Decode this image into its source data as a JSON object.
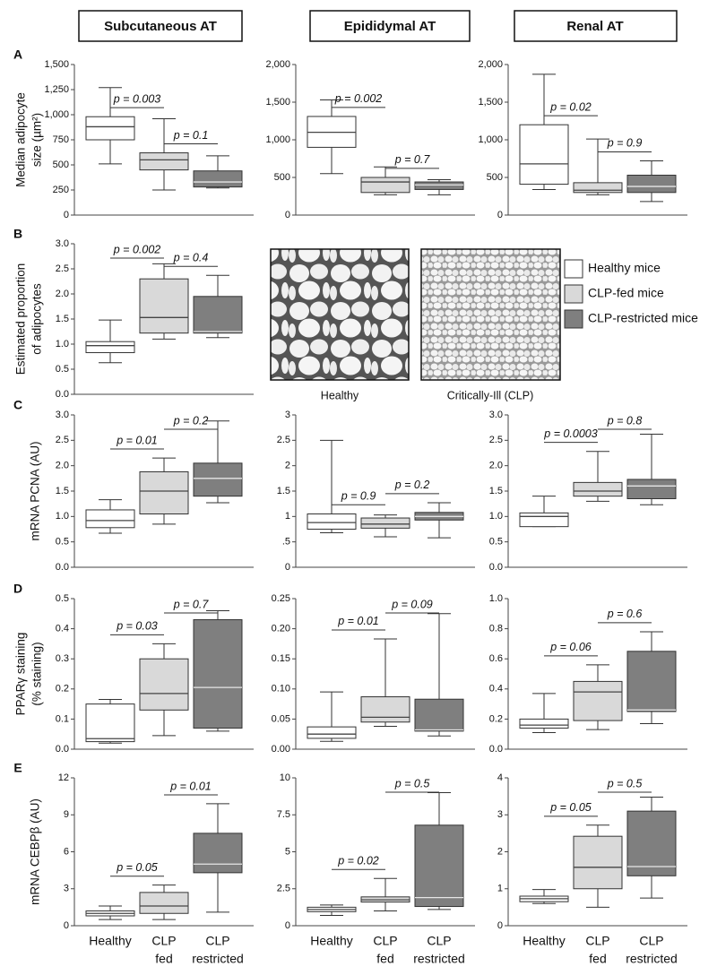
{
  "columns": [
    "Subcutaneous AT",
    "Epididymal AT",
    "Renal AT"
  ],
  "legend": [
    {
      "name": "Healthy mice",
      "color": "#ffffff"
    },
    {
      "name": "CLP-fed mice",
      "color": "#d9d9d9"
    },
    {
      "name": "CLP-restricted mice",
      "color": "#7f7f7f"
    }
  ],
  "image_captions": [
    "Healthy",
    "Critically-Ill (CLP)"
  ],
  "chart_data": [
    {
      "type": "box",
      "panel": "A",
      "ylabel": [
        "Median adipocyte",
        "size (µm²)"
      ],
      "ylim": [
        0,
        1500
      ],
      "yticks": [
        0,
        250,
        500,
        750,
        {
          "value": 1000,
          "label": "1,000"
        },
        {
          "value": 1250,
          "label": "1,250"
        },
        {
          "value": 1500,
          "label": "1,500"
        }
      ],
      "boxes": [
        {
          "min": 510,
          "q1": 750,
          "median": 880,
          "q3": 980,
          "max": 1270
        },
        {
          "min": 250,
          "q1": 450,
          "median": 550,
          "q3": 620,
          "max": 960
        },
        {
          "min": 270,
          "q1": 280,
          "median": 330,
          "q3": 440,
          "max": 590
        }
      ],
      "annotations": [
        "p = 0.003",
        "p = 0.1"
      ]
    },
    {
      "type": "box",
      "ylim": [
        0,
        2000
      ],
      "yticks": [
        0,
        500,
        {
          "value": 1000,
          "label": "1,000"
        },
        {
          "value": 1500,
          "label": "1,500"
        },
        {
          "value": 2000,
          "label": "2,000"
        }
      ],
      "boxes": [
        {
          "min": 550,
          "q1": 900,
          "median": 1100,
          "q3": 1310,
          "max": 1530
        },
        {
          "min": 270,
          "q1": 300,
          "median": 440,
          "q3": 500,
          "max": 640
        },
        {
          "min": 270,
          "q1": 340,
          "median": 400,
          "q3": 440,
          "max": 470
        }
      ],
      "annotations": [
        "p = 0.002",
        "p = 0.7"
      ]
    },
    {
      "type": "box",
      "ylim": [
        0,
        2000
      ],
      "yticks": [
        0,
        500,
        {
          "value": 1000,
          "label": "1,000"
        },
        {
          "value": 1500,
          "label": "1,500"
        },
        {
          "value": 2000,
          "label": "2,000"
        }
      ],
      "boxes": [
        {
          "min": 340,
          "q1": 410,
          "median": 680,
          "q3": 1200,
          "max": 1870
        },
        {
          "min": 270,
          "q1": 300,
          "median": 330,
          "q3": 430,
          "max": 1010
        },
        {
          "min": 180,
          "q1": 300,
          "median": 380,
          "q3": 530,
          "max": 720
        }
      ],
      "annotations": [
        "p = 0.02",
        "p = 0.9"
      ]
    },
    {
      "type": "box",
      "panel": "B",
      "ylabel": [
        "Estimated proportion",
        "of adipocytes"
      ],
      "ylim": [
        0,
        3
      ],
      "yticks": [
        {
          "value": 0,
          "label": "0.0"
        },
        0.5,
        {
          "value": 1,
          "label": "1.0"
        },
        1.5,
        {
          "value": 2,
          "label": "2.0"
        },
        2.5,
        {
          "value": 3,
          "label": "3.0"
        }
      ],
      "boxes": [
        {
          "min": 0.63,
          "q1": 0.83,
          "median": 0.97,
          "q3": 1.05,
          "max": 1.48
        },
        {
          "min": 1.1,
          "q1": 1.22,
          "median": 1.53,
          "q3": 2.3,
          "max": 2.6
        },
        {
          "min": 1.13,
          "q1": 1.22,
          "median": 1.25,
          "q3": 1.95,
          "max": 2.37
        }
      ],
      "annotations": [
        "p = 0.002",
        "p = 0.4"
      ]
    },
    {
      "type": "box",
      "panel": "C",
      "ylabel": [
        "mRNA PCNA (AU)"
      ],
      "ylim": [
        0,
        3
      ],
      "yticks": [
        {
          "value": 0,
          "label": "0.0"
        },
        0.5,
        {
          "value": 1,
          "label": "1.0"
        },
        1.5,
        {
          "value": 2,
          "label": "2.0"
        },
        2.5,
        {
          "value": 3,
          "label": "3.0"
        }
      ],
      "boxes": [
        {
          "min": 0.67,
          "q1": 0.78,
          "median": 0.92,
          "q3": 1.13,
          "max": 1.33
        },
        {
          "min": 0.85,
          "q1": 1.05,
          "median": 1.5,
          "q3": 1.88,
          "max": 2.15
        },
        {
          "min": 1.27,
          "q1": 1.4,
          "median": 1.75,
          "q3": 2.05,
          "max": 2.88
        }
      ],
      "annotations": [
        "p = 0.01",
        "p = 0.2"
      ]
    },
    {
      "type": "box",
      "ylim": [
        0,
        3
      ],
      "yticks": [
        0,
        {
          "value": 0.5,
          "label": ".5"
        },
        1,
        1.5,
        2,
        2.5,
        3
      ],
      "boxes": [
        {
          "min": 0.68,
          "q1": 0.75,
          "median": 0.88,
          "q3": 1.05,
          "max": 2.5
        },
        {
          "min": 0.6,
          "q1": 0.77,
          "median": 0.85,
          "q3": 0.97,
          "max": 1.03
        },
        {
          "min": 0.58,
          "q1": 0.93,
          "median": 1.0,
          "q3": 1.08,
          "max": 1.27
        }
      ],
      "annotations": [
        "p = 0.9",
        "p = 0.2"
      ]
    },
    {
      "type": "box",
      "ylim": [
        0,
        3
      ],
      "yticks": [
        {
          "value": 0,
          "label": "0.0"
        },
        0.5,
        {
          "value": 1,
          "label": "1.0"
        },
        1.5,
        {
          "value": 2,
          "label": "2.0"
        },
        2.5,
        {
          "value": 3,
          "label": "3.0"
        }
      ],
      "boxes": [
        {
          "min": 0.8,
          "q1": 0.8,
          "median": 1.0,
          "q3": 1.07,
          "max": 1.4
        },
        {
          "min": 1.3,
          "q1": 1.4,
          "median": 1.5,
          "q3": 1.67,
          "max": 2.28
        },
        {
          "min": 1.23,
          "q1": 1.35,
          "median": 1.6,
          "q3": 1.73,
          "max": 2.62
        }
      ],
      "annotations": [
        "p = 0.0003",
        "p = 0.8"
      ]
    },
    {
      "type": "box",
      "panel": "D",
      "ylabel": [
        "PPARγ staining",
        "(% staining)"
      ],
      "ylim": [
        0,
        0.5
      ],
      "yticks": [
        {
          "value": 0,
          "label": "0.0"
        },
        0.1,
        0.2,
        0.3,
        0.4,
        0.5
      ],
      "boxes": [
        {
          "min": 0.02,
          "q1": 0.025,
          "median": 0.035,
          "q3": 0.15,
          "max": 0.165
        },
        {
          "min": 0.045,
          "q1": 0.13,
          "median": 0.185,
          "q3": 0.3,
          "max": 0.35
        },
        {
          "min": 0.06,
          "q1": 0.07,
          "median": 0.205,
          "q3": 0.43,
          "max": 0.46
        }
      ],
      "annotations": [
        "p = 0.03",
        "p = 0.7"
      ]
    },
    {
      "type": "box",
      "ylim": [
        0,
        0.25
      ],
      "yticks": [
        {
          "value": 0,
          "label": "0.00"
        },
        0.05,
        {
          "value": 0.1,
          "label": "0.10"
        },
        0.15,
        {
          "value": 0.2,
          "label": "0.20"
        },
        0.25
      ],
      "boxes": [
        {
          "min": 0.013,
          "q1": 0.018,
          "median": 0.025,
          "q3": 0.037,
          "max": 0.095
        },
        {
          "min": 0.038,
          "q1": 0.045,
          "median": 0.053,
          "q3": 0.087,
          "max": 0.183
        },
        {
          "min": 0.022,
          "q1": 0.03,
          "median": 0.032,
          "q3": 0.083,
          "max": 0.225
        }
      ],
      "annotations": [
        "p = 0.01",
        "p = 0.09"
      ]
    },
    {
      "type": "box",
      "ylim": [
        0,
        1
      ],
      "yticks": [
        {
          "value": 0,
          "label": "0.0"
        },
        0.2,
        0.4,
        0.6,
        0.8,
        {
          "value": 1,
          "label": "1.0"
        }
      ],
      "boxes": [
        {
          "min": 0.11,
          "q1": 0.14,
          "median": 0.16,
          "q3": 0.2,
          "max": 0.37
        },
        {
          "min": 0.13,
          "q1": 0.19,
          "median": 0.38,
          "q3": 0.45,
          "max": 0.56
        },
        {
          "min": 0.17,
          "q1": 0.25,
          "median": 0.26,
          "q3": 0.65,
          "max": 0.78
        }
      ],
      "annotations": [
        "p = 0.06",
        "p = 0.6"
      ]
    },
    {
      "type": "box",
      "panel": "E",
      "ylabel": [
        "mRNA CEBPβ (AU)"
      ],
      "categories": [
        [
          "Healthy"
        ],
        [
          "CLP",
          "fed"
        ],
        [
          "CLP",
          "restricted"
        ]
      ],
      "ylim": [
        0,
        12
      ],
      "yticks": [
        0,
        3,
        6,
        9,
        12
      ],
      "boxes": [
        {
          "min": 0.5,
          "q1": 0.8,
          "median": 1.0,
          "q3": 1.2,
          "max": 1.6
        },
        {
          "min": 0.5,
          "q1": 1.0,
          "median": 1.6,
          "q3": 2.7,
          "max": 3.3
        },
        {
          "min": 1.1,
          "q1": 4.3,
          "median": 5.0,
          "q3": 7.5,
          "max": 9.9
        }
      ],
      "annotations": [
        "p = 0.05",
        "p = 0.01"
      ]
    },
    {
      "type": "box",
      "categories": [
        [
          "Healthy"
        ],
        [
          "CLP",
          "fed"
        ],
        [
          "CLP",
          "restricted"
        ]
      ],
      "ylim": [
        0,
        10
      ],
      "yticks": [
        0,
        2.5,
        5,
        7.5,
        10
      ],
      "boxes": [
        {
          "min": 0.7,
          "q1": 0.95,
          "median": 1.1,
          "q3": 1.25,
          "max": 1.4
        },
        {
          "min": 1.0,
          "q1": 1.6,
          "median": 1.75,
          "q3": 1.95,
          "max": 3.2
        },
        {
          "min": 1.1,
          "q1": 1.3,
          "median": 1.9,
          "q3": 6.8,
          "max": 9.0
        }
      ],
      "annotations": [
        "p = 0.02",
        "p = 0.5"
      ]
    },
    {
      "type": "box",
      "categories": [
        [
          "Healthy"
        ],
        [
          "CLP",
          "fed"
        ],
        [
          "CLP",
          "restricted"
        ]
      ],
      "ylim": [
        0,
        4
      ],
      "yticks": [
        0,
        1,
        2,
        3,
        4
      ],
      "boxes": [
        {
          "min": 0.6,
          "q1": 0.65,
          "median": 0.73,
          "q3": 0.8,
          "max": 0.98
        },
        {
          "min": 0.5,
          "q1": 1.0,
          "median": 1.58,
          "q3": 2.42,
          "max": 2.72
        },
        {
          "min": 0.75,
          "q1": 1.35,
          "median": 1.6,
          "q3": 3.1,
          "max": 3.48
        }
      ],
      "annotations": [
        "p = 0.05",
        "p = 0.5"
      ]
    }
  ]
}
